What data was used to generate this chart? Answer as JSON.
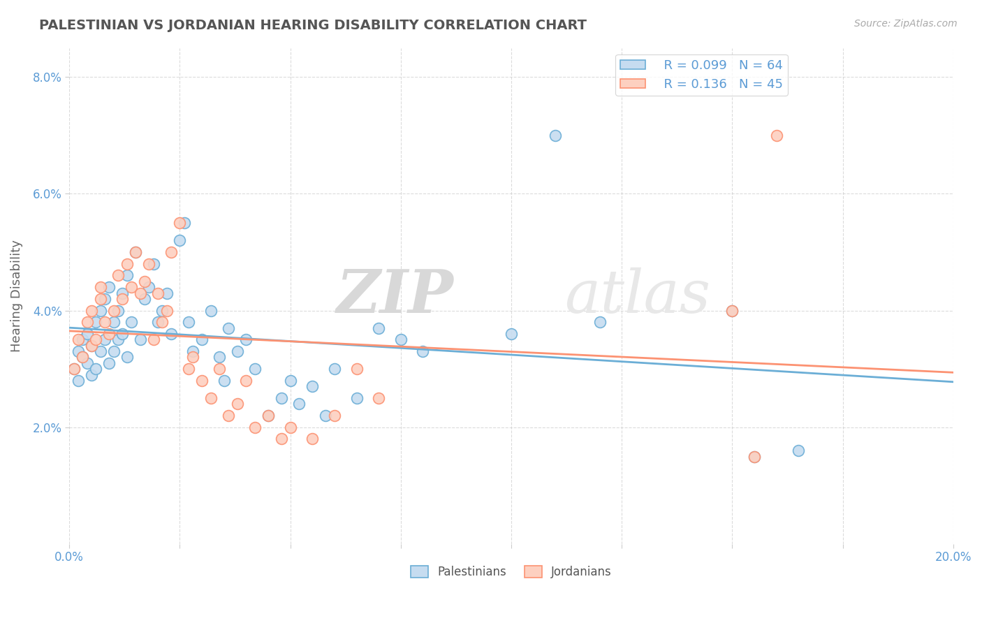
{
  "title": "PALESTINIAN VS JORDANIAN HEARING DISABILITY CORRELATION CHART",
  "source": "Source: ZipAtlas.com",
  "ylabel": "Hearing Disability",
  "xlim": [
    0.0,
    0.2
  ],
  "ylim": [
    0.0,
    0.085
  ],
  "yticks": [
    0.02,
    0.04,
    0.06,
    0.08
  ],
  "ytick_labels": [
    "2.0%",
    "4.0%",
    "6.0%",
    "8.0%"
  ],
  "xticks": [
    0.0,
    0.025,
    0.05,
    0.075,
    0.1,
    0.125,
    0.15,
    0.175,
    0.2
  ],
  "legend_r1": "R = 0.099",
  "legend_n1": "N = 64",
  "legend_r2": "R = 0.136",
  "legend_n2": "N = 45",
  "color_palestinian": "#6baed6",
  "color_jordanian": "#fc9272",
  "color_palestinian_light": "#c6dcf0",
  "color_jordanian_light": "#fdd0c0",
  "background_color": "#ffffff",
  "watermark_zip": "ZIP",
  "watermark_atlas": "atlas",
  "palestinian_x": [
    0.001,
    0.002,
    0.002,
    0.003,
    0.003,
    0.004,
    0.004,
    0.005,
    0.005,
    0.006,
    0.006,
    0.007,
    0.007,
    0.008,
    0.008,
    0.009,
    0.009,
    0.01,
    0.01,
    0.011,
    0.011,
    0.012,
    0.012,
    0.013,
    0.013,
    0.014,
    0.015,
    0.016,
    0.017,
    0.018,
    0.019,
    0.02,
    0.021,
    0.022,
    0.023,
    0.025,
    0.026,
    0.027,
    0.028,
    0.03,
    0.032,
    0.034,
    0.035,
    0.036,
    0.038,
    0.04,
    0.042,
    0.045,
    0.048,
    0.05,
    0.052,
    0.055,
    0.058,
    0.06,
    0.065,
    0.07,
    0.075,
    0.08,
    0.1,
    0.11,
    0.12,
    0.15,
    0.155,
    0.165
  ],
  "palestinian_y": [
    0.03,
    0.033,
    0.028,
    0.035,
    0.032,
    0.031,
    0.036,
    0.029,
    0.034,
    0.03,
    0.038,
    0.033,
    0.04,
    0.035,
    0.042,
    0.031,
    0.044,
    0.033,
    0.038,
    0.035,
    0.04,
    0.036,
    0.043,
    0.032,
    0.046,
    0.038,
    0.05,
    0.035,
    0.042,
    0.044,
    0.048,
    0.038,
    0.04,
    0.043,
    0.036,
    0.052,
    0.055,
    0.038,
    0.033,
    0.035,
    0.04,
    0.032,
    0.028,
    0.037,
    0.033,
    0.035,
    0.03,
    0.022,
    0.025,
    0.028,
    0.024,
    0.027,
    0.022,
    0.03,
    0.025,
    0.037,
    0.035,
    0.033,
    0.036,
    0.07,
    0.038,
    0.04,
    0.015,
    0.016
  ],
  "jordanian_x": [
    0.001,
    0.002,
    0.003,
    0.004,
    0.005,
    0.005,
    0.006,
    0.007,
    0.007,
    0.008,
    0.009,
    0.01,
    0.011,
    0.012,
    0.013,
    0.014,
    0.015,
    0.016,
    0.017,
    0.018,
    0.019,
    0.02,
    0.021,
    0.022,
    0.023,
    0.025,
    0.027,
    0.028,
    0.03,
    0.032,
    0.034,
    0.036,
    0.038,
    0.04,
    0.042,
    0.045,
    0.048,
    0.05,
    0.055,
    0.06,
    0.065,
    0.07,
    0.15,
    0.155,
    0.16
  ],
  "jordanian_y": [
    0.03,
    0.035,
    0.032,
    0.038,
    0.034,
    0.04,
    0.035,
    0.042,
    0.044,
    0.038,
    0.036,
    0.04,
    0.046,
    0.042,
    0.048,
    0.044,
    0.05,
    0.043,
    0.045,
    0.048,
    0.035,
    0.043,
    0.038,
    0.04,
    0.05,
    0.055,
    0.03,
    0.032,
    0.028,
    0.025,
    0.03,
    0.022,
    0.024,
    0.028,
    0.02,
    0.022,
    0.018,
    0.02,
    0.018,
    0.022,
    0.03,
    0.025,
    0.04,
    0.015,
    0.07
  ]
}
